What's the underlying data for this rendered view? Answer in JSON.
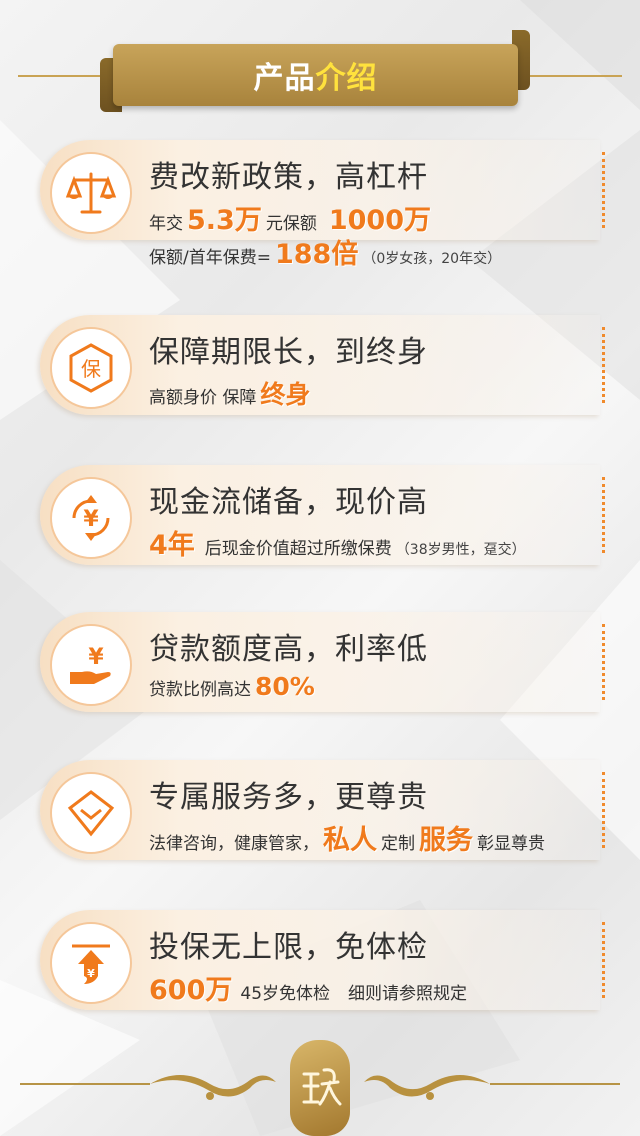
{
  "header": {
    "title_white": "产品",
    "title_yellow": "介绍"
  },
  "features": [
    {
      "icon": "scale-icon",
      "title": "费改新政策，高杠杆",
      "line1": {
        "a": "年交",
        "b": "5.3万",
        "c": "元保额",
        "d": "1000万"
      },
      "line2": {
        "a": "保额/首年保费=",
        "b": "188倍",
        "c": "（0岁女孩，20年交）"
      }
    },
    {
      "icon": "shield-bao-icon",
      "title": "保障期限长，到终身",
      "line1": {
        "a": "高额身价 保障",
        "b": "终身"
      }
    },
    {
      "icon": "yuan-cycle-icon",
      "title": "现金流储备，现价高",
      "line1": {
        "a": "4年",
        "b": "后现金价值超过所缴保费",
        "c": "（38岁男性，趸交）"
      }
    },
    {
      "icon": "hand-yuan-icon",
      "title": "贷款额度高，利率低",
      "line1": {
        "a": "贷款比例高达",
        "b": "80%"
      }
    },
    {
      "icon": "diamond-badge-icon",
      "title": "专属服务多，更尊贵",
      "line1": {
        "a": "法律咨询，健康管家，",
        "b": "私人",
        "c": "定制",
        "d": "服务",
        "e": "彰显尊贵"
      }
    },
    {
      "icon": "upload-yuan-icon",
      "title": "投保无上限，免体检",
      "line1": {
        "a": "600万",
        "b": "45岁免体检",
        "c": "细则请参照规定"
      }
    }
  ],
  "colors": {
    "accent": "#f07a1c",
    "gold": "#b8913f",
    "ribbon": "#b8913f"
  }
}
